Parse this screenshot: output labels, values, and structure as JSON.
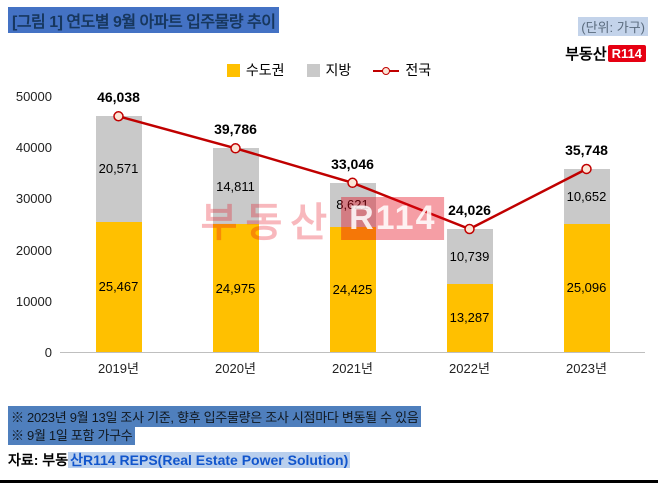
{
  "header": {
    "title": "[그림 1] 연도별 9월 아파트 입주물량 추이",
    "unit": "(단위: 가구)"
  },
  "logo": {
    "prefix": "부동산",
    "box": "R114"
  },
  "watermark": {
    "prefix": "부동산",
    "box": "R114"
  },
  "chart_data": {
    "type": "bar",
    "subtype": "stacked-bar-with-line",
    "categories": [
      "2019년",
      "2020년",
      "2021년",
      "2022년",
      "2023년"
    ],
    "series": [
      {
        "name": "수도권",
        "type": "bar",
        "color": "#FFC000",
        "values": [
          25467,
          24975,
          24425,
          13287,
          25096
        ]
      },
      {
        "name": "지방",
        "type": "bar",
        "color": "#C9C9C9",
        "values": [
          20571,
          14811,
          8621,
          10739,
          10652
        ]
      },
      {
        "name": "전국",
        "type": "line",
        "color": "#C00000",
        "values": [
          46038,
          39786,
          33046,
          24026,
          35748
        ]
      }
    ],
    "title": "[그림 1] 연도별 9월 아파트 입주물량 추이",
    "xlabel": "",
    "ylabel": "",
    "ylim": [
      0,
      50000
    ],
    "yticks": [
      0,
      10000,
      20000,
      30000,
      40000,
      50000
    ],
    "grid": false,
    "legend_position": "top",
    "marker_fill": "#FBE5D6"
  },
  "notes": {
    "line1": "※ 2023년 9월 13일 조사 기준, 향후 입주물량은 조사 시점마다 변동될 수 있음",
    "line2": "※ 9월 1일 포함 가구수"
  },
  "source": {
    "prefix": "자료: 부동",
    "highlight": "산R114 REPS(Real Estate Power Solution)"
  }
}
